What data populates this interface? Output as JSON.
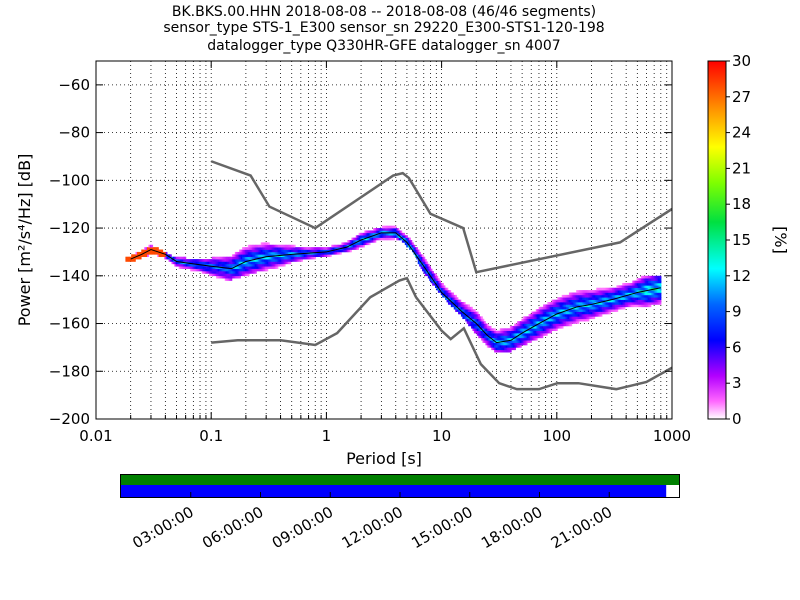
{
  "title_lines": [
    "BK.BKS.00.HHN   2018-08-08 -- 2018-08-08  (46/46 segments)",
    "sensor_type STS-1_E300 sensor_sn 29220_E300-STS1-120-198",
    "datalogger_type Q330HR-GFE datalogger_sn 4007"
  ],
  "chart_data": {
    "type": "heatmap",
    "xlabel": "Period [s]",
    "ylabel": "Power [m²/s⁴/Hz] [dB]",
    "x_scale": "log",
    "xlim": [
      0.01,
      1000
    ],
    "ylim": [
      -200,
      -50
    ],
    "x_ticks": [
      0.01,
      0.1,
      1,
      10,
      100,
      1000
    ],
    "x_tick_labels": [
      "0.01",
      "0.1",
      "1",
      "10",
      "100",
      "1000"
    ],
    "y_ticks": [
      -200,
      -180,
      -160,
      -140,
      -120,
      -100,
      -80,
      -60
    ],
    "y_tick_labels": [
      "−200",
      "−180",
      "−160",
      "−140",
      "−120",
      "−100",
      "−80",
      "−60"
    ],
    "grid": "dotted",
    "colorbar": {
      "label": "[%]",
      "range": [
        0,
        30
      ],
      "ticks": [
        0,
        3,
        6,
        9,
        12,
        15,
        18,
        21,
        24,
        27,
        30
      ],
      "tick_labels": [
        "0",
        "3",
        "6",
        "9",
        "12",
        "15",
        "18",
        "21",
        "24",
        "27",
        "30"
      ]
    },
    "noise_models": [
      {
        "name": "high-noise",
        "points": [
          [
            0.1,
            -92
          ],
          [
            0.22,
            -98
          ],
          [
            0.32,
            -111
          ],
          [
            0.8,
            -120
          ],
          [
            3.8,
            -98
          ],
          [
            4.6,
            -97
          ],
          [
            5.2,
            -99
          ],
          [
            8,
            -114
          ],
          [
            15.4,
            -120
          ],
          [
            20,
            -138.5
          ],
          [
            354,
            -126
          ],
          [
            1000,
            -112
          ]
        ]
      },
      {
        "name": "low-noise",
        "points": [
          [
            0.1,
            -168
          ],
          [
            0.17,
            -167
          ],
          [
            0.4,
            -167
          ],
          [
            0.8,
            -169
          ],
          [
            1.24,
            -164
          ],
          [
            2.4,
            -149
          ],
          [
            4.3,
            -142
          ],
          [
            5,
            -141
          ],
          [
            6,
            -149
          ],
          [
            10,
            -163
          ],
          [
            12,
            -166.5
          ],
          [
            15.6,
            -162
          ],
          [
            21.9,
            -177
          ],
          [
            31.6,
            -185
          ],
          [
            45,
            -187.5
          ],
          [
            70,
            -187.5
          ],
          [
            101,
            -185
          ],
          [
            154,
            -185
          ],
          [
            328,
            -187.5
          ],
          [
            600,
            -184.5
          ],
          [
            1000,
            -178.5
          ]
        ]
      }
    ],
    "mode_line": [
      [
        0.02,
        -133
      ],
      [
        0.025,
        -131
      ],
      [
        0.03,
        -129
      ],
      [
        0.04,
        -131
      ],
      [
        0.05,
        -134
      ],
      [
        0.07,
        -135
      ],
      [
        0.1,
        -136
      ],
      [
        0.15,
        -137
      ],
      [
        0.2,
        -134
      ],
      [
        0.3,
        -132
      ],
      [
        0.5,
        -131
      ],
      [
        1,
        -130
      ],
      [
        1.5,
        -128
      ],
      [
        2,
        -125
      ],
      [
        3,
        -122
      ],
      [
        4,
        -122
      ],
      [
        5,
        -126
      ],
      [
        7,
        -136
      ],
      [
        10,
        -147
      ],
      [
        15,
        -155
      ],
      [
        20,
        -160
      ],
      [
        25,
        -165
      ],
      [
        30,
        -168
      ],
      [
        40,
        -167
      ],
      [
        50,
        -164
      ],
      [
        70,
        -160
      ],
      [
        100,
        -156
      ],
      [
        150,
        -153
      ],
      [
        200,
        -152
      ],
      [
        300,
        -150
      ],
      [
        500,
        -147
      ],
      [
        800,
        -145
      ]
    ],
    "density_band": [
      [
        0.018,
        -134,
        -132,
        10
      ],
      [
        0.022,
        -133,
        -130,
        10
      ],
      [
        0.028,
        -131,
        -127,
        10
      ],
      [
        0.035,
        -132,
        -129,
        10
      ],
      [
        0.045,
        -136,
        -132,
        10
      ],
      [
        0.06,
        -138,
        -133,
        10
      ],
      [
        0.08,
        -139,
        -133,
        10
      ],
      [
        0.1,
        -141,
        -133,
        10
      ],
      [
        0.13,
        -142,
        -132,
        10
      ],
      [
        0.18,
        -140,
        -128,
        12
      ],
      [
        0.25,
        -138,
        -126,
        12
      ],
      [
        0.35,
        -137,
        -127,
        12
      ],
      [
        0.5,
        -134,
        -127,
        12
      ],
      [
        0.7,
        -133,
        -128,
        10
      ],
      [
        1,
        -132,
        -128,
        10
      ],
      [
        1.4,
        -130,
        -126,
        10
      ],
      [
        2,
        -128,
        -122,
        12
      ],
      [
        2.8,
        -125,
        -120,
        12
      ],
      [
        3.5,
        -124,
        -119,
        12
      ],
      [
        4.5,
        -125,
        -120,
        12
      ],
      [
        5.5,
        -129,
        -122,
        12
      ],
      [
        7,
        -138,
        -130,
        10
      ],
      [
        9,
        -145,
        -137,
        10
      ],
      [
        12,
        -152,
        -144,
        10
      ],
      [
        16,
        -158,
        -149,
        10
      ],
      [
        20,
        -164,
        -153,
        10
      ],
      [
        25,
        -169,
        -160,
        10
      ],
      [
        30,
        -172,
        -162,
        12
      ],
      [
        40,
        -171,
        -160,
        12
      ],
      [
        55,
        -168,
        -156,
        12
      ],
      [
        75,
        -165,
        -152,
        12
      ],
      [
        100,
        -162,
        -149,
        12
      ],
      [
        140,
        -160,
        -147,
        12
      ],
      [
        200,
        -158,
        -146,
        12
      ],
      [
        300,
        -155,
        -145,
        12
      ],
      [
        450,
        -153,
        -143,
        12
      ],
      [
        600,
        -153,
        -140,
        14
      ],
      [
        800,
        -153,
        -140,
        14
      ]
    ]
  },
  "timeline": {
    "tick_labels": [
      "03:00:00",
      "06:00:00",
      "09:00:00",
      "12:00:00",
      "15:00:00",
      "18:00:00",
      "21:00:00"
    ],
    "tick_hours": [
      3,
      6,
      9,
      12,
      15,
      18,
      21
    ],
    "span_hours": 24,
    "data_available_fraction": 1.0,
    "psd_coverage_fraction": 0.977,
    "colors": {
      "data": "#008000",
      "coverage": "#0000ff"
    }
  }
}
